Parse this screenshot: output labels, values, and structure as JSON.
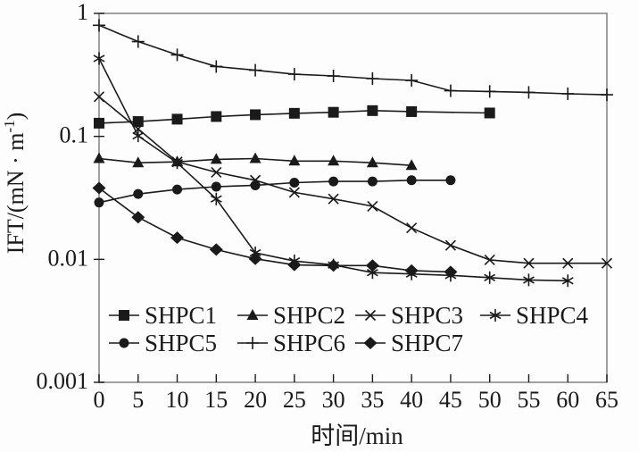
{
  "figure": {
    "background": "#fdfdfd",
    "frame_color": "#8a8a8a",
    "ink_color": "#1a1a1a"
  },
  "chart_data": {
    "type": "line",
    "title": "",
    "xlabel": "时间/min",
    "ylabel": "IFT/(mN · m⁻¹)",
    "ylabel_parts": {
      "pre": "IFT/(mN · m",
      "sup": "-1",
      "post": ")"
    },
    "x_ticks": [
      0,
      5,
      10,
      15,
      20,
      25,
      30,
      35,
      40,
      45,
      50,
      55,
      60,
      65
    ],
    "y_scale": "log",
    "y_ticks": [
      1,
      0.1,
      0.01,
      0.001
    ],
    "y_tick_labels": [
      "1",
      "0.1",
      "0.01",
      "0.001"
    ],
    "xlim": [
      0,
      65
    ],
    "ylim": [
      0.001,
      1
    ],
    "grid": false,
    "legend_position": "inside-bottom",
    "legend_rows": [
      [
        "SHPC1",
        "SHPC2",
        "SHPC3",
        "SHPC4"
      ],
      [
        "SHPC5",
        "SHPC6",
        "SHPC7"
      ]
    ],
    "series": [
      {
        "name": "SHPC1",
        "marker": "square",
        "x": [
          0,
          5,
          10,
          15,
          20,
          25,
          30,
          35,
          40,
          50
        ],
        "y": [
          0.128,
          0.132,
          0.138,
          0.145,
          0.15,
          0.154,
          0.157,
          0.162,
          0.159,
          0.155
        ]
      },
      {
        "name": "SHPC2",
        "marker": "triangle",
        "x": [
          0,
          5,
          10,
          15,
          20,
          25,
          30,
          35,
          40
        ],
        "y": [
          0.066,
          0.061,
          0.062,
          0.065,
          0.066,
          0.063,
          0.063,
          0.061,
          0.058
        ]
      },
      {
        "name": "SHPC3",
        "marker": "x",
        "x": [
          0,
          5,
          10,
          15,
          20,
          25,
          30,
          35,
          40,
          45,
          50,
          55,
          60,
          65
        ],
        "y": [
          0.21,
          0.115,
          0.062,
          0.051,
          0.044,
          0.035,
          0.031,
          0.027,
          0.018,
          0.013,
          0.0099,
          0.0093,
          0.0093,
          0.0093
        ]
      },
      {
        "name": "SHPC4",
        "marker": "asterisk",
        "x": [
          0,
          5,
          10,
          15,
          20,
          25,
          30,
          35,
          40,
          45,
          50,
          55,
          60
        ],
        "y": [
          0.43,
          0.101,
          0.061,
          0.031,
          0.0113,
          0.0097,
          0.009,
          0.0078,
          0.0076,
          0.0074,
          0.0071,
          0.0068,
          0.0067
        ]
      },
      {
        "name": "SHPC5",
        "marker": "circle",
        "x": [
          0,
          5,
          10,
          15,
          20,
          25,
          30,
          35,
          40,
          45
        ],
        "y": [
          0.029,
          0.034,
          0.037,
          0.039,
          0.04,
          0.042,
          0.043,
          0.043,
          0.044,
          0.044
        ]
      },
      {
        "name": "SHPC6",
        "marker": "plus",
        "x": [
          0,
          5,
          10,
          15,
          20,
          25,
          30,
          35,
          40,
          45,
          50,
          55,
          60,
          65
        ],
        "y": [
          0.8,
          0.59,
          0.46,
          0.37,
          0.345,
          0.32,
          0.31,
          0.295,
          0.285,
          0.235,
          0.232,
          0.228,
          0.222,
          0.218
        ]
      },
      {
        "name": "SHPC7",
        "marker": "diamond",
        "x": [
          0,
          5,
          10,
          15,
          20,
          25,
          30,
          35,
          40,
          45
        ],
        "y": [
          0.038,
          0.022,
          0.015,
          0.012,
          0.0101,
          0.009,
          0.0089,
          0.0089,
          0.0081,
          0.0079
        ]
      }
    ]
  }
}
